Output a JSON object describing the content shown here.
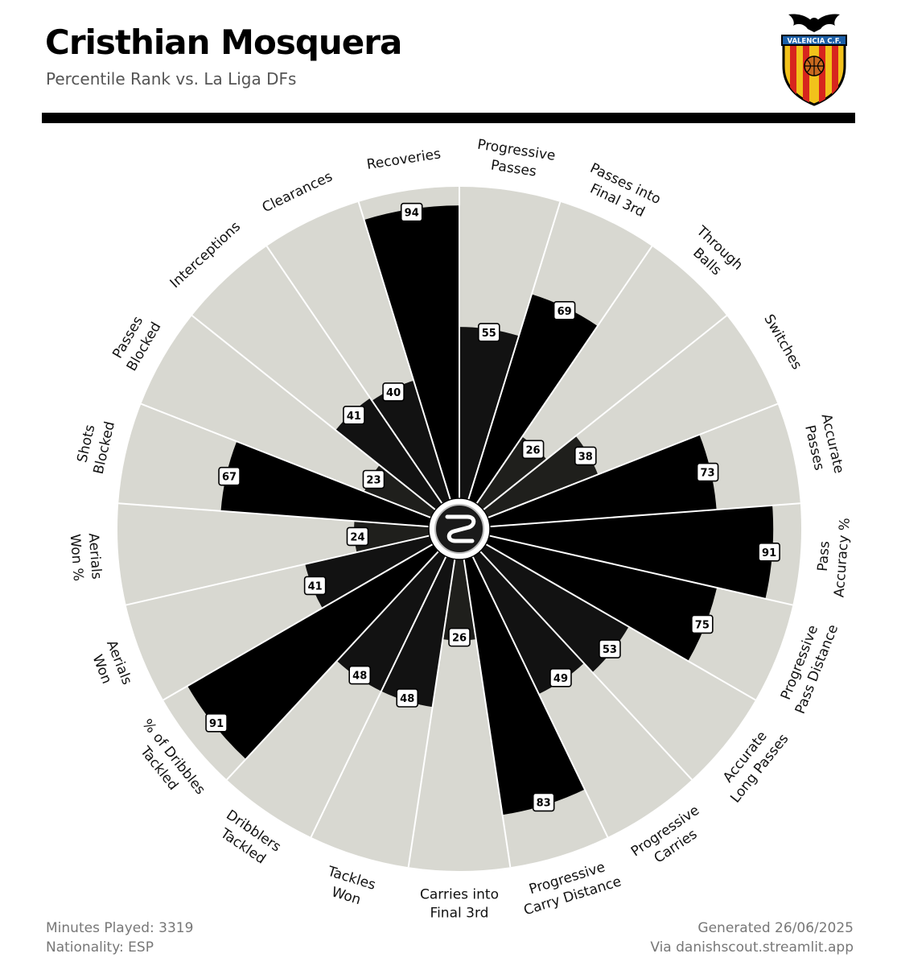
{
  "header": {
    "title": "Cristhian Mosquera",
    "subtitle": "Percentile Rank vs. La Liga DFs"
  },
  "crest": {
    "text": "VALENCIA C.F.",
    "colors": {
      "stripe_yellow": "#f2c21b",
      "stripe_red": "#d7251e",
      "band": "#1b5fa8",
      "outline": "#000000"
    }
  },
  "center_logo": {
    "icon": "danishscout-logo-icon"
  },
  "footer": {
    "minutes": "Minutes Played: 3319",
    "nationality": "Nationality: ESP",
    "generated": "Generated 26/06/2025",
    "via": "Via danishscout.streamlit.app"
  },
  "chart_data": {
    "type": "polar-bar",
    "range": [
      0,
      100
    ],
    "colors": {
      "background_wedge": "#d8d8d1",
      "bar_high": "#000000",
      "bar_mid": "#121212",
      "bar_low": "#1f1f1c",
      "separator": "#ffffff",
      "label_box": "#ffffff"
    },
    "metrics": [
      {
        "label": [
          "Progressive",
          "Passes"
        ],
        "value": 55
      },
      {
        "label": [
          "Passes into",
          "Final 3rd"
        ],
        "value": 69
      },
      {
        "label": [
          "Through",
          "Balls"
        ],
        "value": 26
      },
      {
        "label": [
          "Switches"
        ],
        "value": 38
      },
      {
        "label": [
          "Accurate",
          "Passes"
        ],
        "value": 73
      },
      {
        "label": [
          "Pass",
          "Accuracy %"
        ],
        "value": 91
      },
      {
        "label": [
          "Progressive",
          "Pass Distance"
        ],
        "value": 75
      },
      {
        "label": [
          "Accurate",
          "Long Passes"
        ],
        "value": 53
      },
      {
        "label": [
          "Progressive",
          "Carries"
        ],
        "value": 49
      },
      {
        "label": [
          "Progressive",
          "Carry Distance"
        ],
        "value": 83
      },
      {
        "label": [
          "Carries into",
          "Final 3rd"
        ],
        "value": 26
      },
      {
        "label": [
          "Tackles",
          "Won"
        ],
        "value": 48
      },
      {
        "label": [
          "Dribblers",
          "Tackled"
        ],
        "value": 48
      },
      {
        "label": [
          "% of Dribbles",
          "Tackled"
        ],
        "value": 91
      },
      {
        "label": [
          "Aerials",
          "Won"
        ],
        "value": 41
      },
      {
        "label": [
          "Aerials",
          "Won %"
        ],
        "value": 24
      },
      {
        "label": [
          "Shots",
          "Blocked"
        ],
        "value": 67
      },
      {
        "label": [
          "Passes",
          "Blocked"
        ],
        "value": 23
      },
      {
        "label": [
          "Interceptions"
        ],
        "value": 41
      },
      {
        "label": [
          "Clearances"
        ],
        "value": 40
      },
      {
        "label": [
          "Recoveries"
        ],
        "value": 94
      }
    ]
  }
}
